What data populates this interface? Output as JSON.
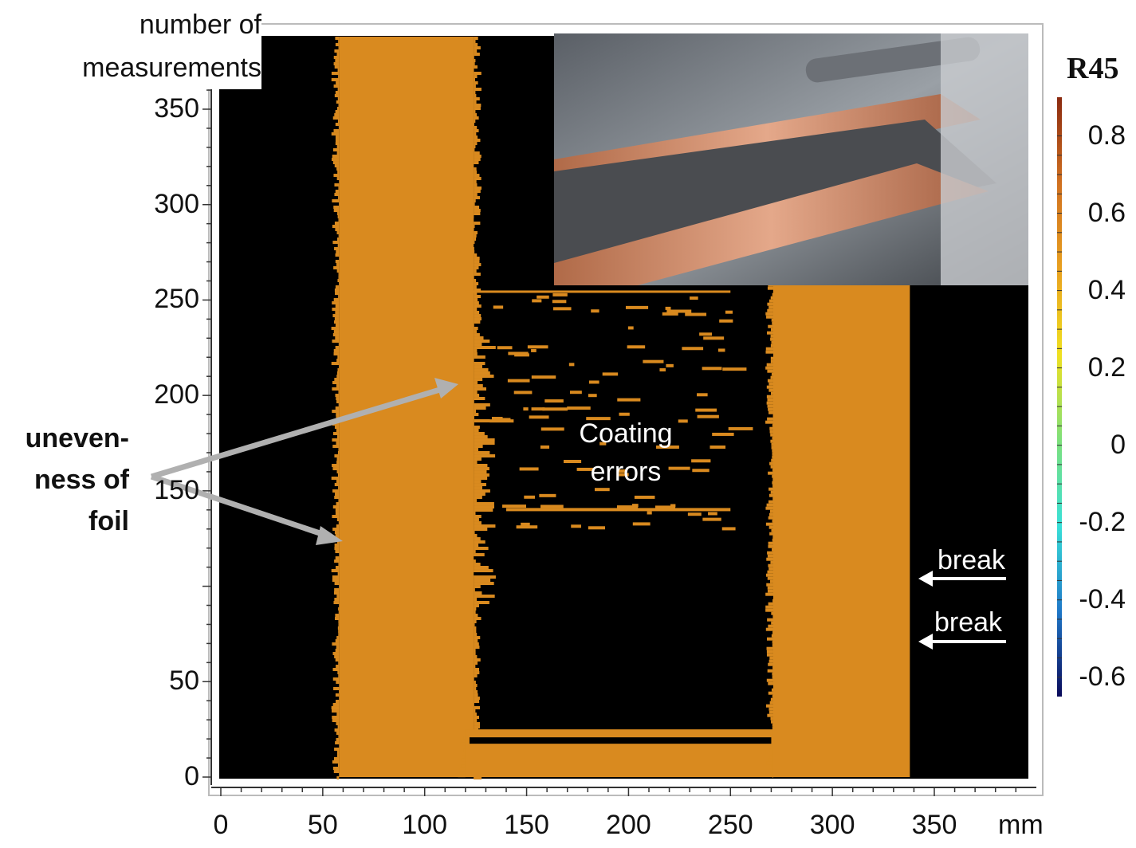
{
  "chart_data": {
    "type": "heatmap",
    "title": "",
    "xlabel": "mm",
    "ylabel": "number of measurements",
    "xlim": [
      0,
      397
    ],
    "ylim": [
      0,
      388
    ],
    "x_ticks": [
      "0",
      "50",
      "100",
      "150",
      "200",
      "250",
      "300",
      "350"
    ],
    "x_tick_values": [
      0,
      50,
      100,
      150,
      200,
      250,
      300,
      350
    ],
    "y_ticks": [
      "0",
      "50",
      "150",
      "200",
      "250",
      "300",
      "350"
    ],
    "y_tick_values": [
      0,
      50,
      150,
      200,
      250,
      300,
      350
    ],
    "colorbar": {
      "title": "R45",
      "range": [
        -0.65,
        0.9
      ],
      "ticks": [
        "0.8",
        "0.6",
        "0.4",
        "0.2",
        "0",
        "-0.2",
        "-0.4",
        "-0.6"
      ],
      "tick_values": [
        0.8,
        0.6,
        0.4,
        0.2,
        0,
        -0.2,
        -0.4,
        -0.6
      ],
      "colors": [
        "#0a0a5a",
        "#1f78c8",
        "#39e0d8",
        "#7fe07a",
        "#f0e020",
        "#e8a020",
        "#d07020",
        "#8a2a10"
      ]
    },
    "background_color": "#000000",
    "coated_color": "#d98a1f",
    "regions": [
      {
        "name": "foil-strip-left",
        "x": [
          58,
          124
        ],
        "y": [
          0,
          388
        ],
        "value": 0.7
      },
      {
        "name": "foil-strip-bottom",
        "x": [
          120,
          272
        ],
        "y": [
          0,
          25
        ],
        "value": 0.7
      },
      {
        "name": "foil-strip-right",
        "x": [
          271,
          338
        ],
        "y": [
          0,
          262
        ],
        "value": 0.7
      }
    ],
    "annotations": {
      "unevenness": [
        "uneven-",
        "ness of",
        "foil"
      ],
      "coating_errors": [
        "Coating",
        "errors"
      ],
      "break_1": "break",
      "break_2": "break"
    }
  }
}
